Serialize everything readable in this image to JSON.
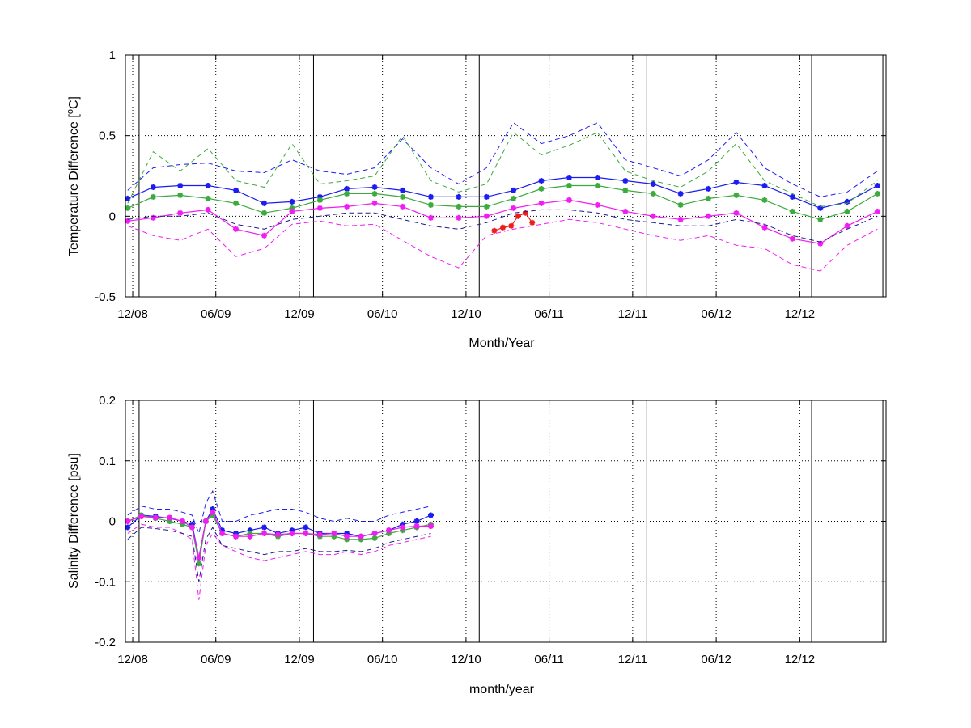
{
  "chart_data": [
    {
      "type": "line",
      "xlabel": "Month/Year",
      "ylabel": "Temperature Difference [",
      "ylabel_sup": "o",
      "ylabel_end": "C]",
      "xlim": [
        "2008-11-15",
        "2013-06-08"
      ],
      "ylim": [
        -0.5,
        1
      ],
      "yticks": [
        "1",
        "0.5",
        "0",
        "-0.5"
      ],
      "xticks": [
        "12/08",
        "06/09",
        "12/09",
        "06/10",
        "12/10",
        "06/11",
        "12/11",
        "06/12",
        "12/12"
      ],
      "xtick_dates": [
        "2008-12-01",
        "2009-06-01",
        "2009-12-01",
        "2010-06-01",
        "2010-12-01",
        "2011-06-01",
        "2011-12-01",
        "2012-06-01",
        "2012-12-01"
      ],
      "markers": [
        "2008-12-15",
        "2010-01-01",
        "2010-12-30",
        "2012-01-01",
        "2012-12-27",
        "2013-06-01"
      ],
      "grid": true,
      "colors": {
        "blue": "#1c1cf0",
        "green": "#3caa3c",
        "magenta": "#f01cf0",
        "red": "#f01c1c",
        "darkblue": "#1c1c8c"
      },
      "series": [
        {
          "color": "blue",
          "style": "marker-line",
          "x": [
            "2008-11-20",
            "2009-01-15",
            "2009-03-15",
            "2009-05-15",
            "2009-07-15",
            "2009-09-15",
            "2009-11-15",
            "2010-01-15",
            "2010-03-15",
            "2010-05-15",
            "2010-07-15",
            "2010-09-15",
            "2010-11-15",
            "2011-01-15",
            "2011-03-15",
            "2011-05-15",
            "2011-07-15",
            "2011-09-15",
            "2011-11-15",
            "2012-01-15",
            "2012-03-15",
            "2012-05-15",
            "2012-07-15",
            "2012-09-15",
            "2012-11-15",
            "2013-01-15",
            "2013-03-15",
            "2013-05-20"
          ],
          "y": [
            0.11,
            0.18,
            0.19,
            0.19,
            0.16,
            0.08,
            0.09,
            0.12,
            0.17,
            0.18,
            0.16,
            0.12,
            0.12,
            0.12,
            0.16,
            0.22,
            0.24,
            0.24,
            0.22,
            0.2,
            0.14,
            0.17,
            0.21,
            0.19,
            0.12,
            0.05,
            0.09,
            0.19
          ]
        },
        {
          "color": "green",
          "style": "marker-line",
          "x": [
            "2008-11-20",
            "2009-01-15",
            "2009-03-15",
            "2009-05-15",
            "2009-07-15",
            "2009-09-15",
            "2009-11-15",
            "2010-01-15",
            "2010-03-15",
            "2010-05-15",
            "2010-07-15",
            "2010-09-15",
            "2010-11-15",
            "2011-01-15",
            "2011-03-15",
            "2011-05-15",
            "2011-07-15",
            "2011-09-15",
            "2011-11-15",
            "2012-01-15",
            "2012-03-15",
            "2012-05-15",
            "2012-07-15",
            "2012-09-15",
            "2012-11-15",
            "2013-01-15",
            "2013-03-15",
            "2013-05-20"
          ],
          "y": [
            0.05,
            0.12,
            0.13,
            0.11,
            0.08,
            0.02,
            0.05,
            0.1,
            0.14,
            0.14,
            0.12,
            0.07,
            0.06,
            0.06,
            0.11,
            0.17,
            0.19,
            0.19,
            0.16,
            0.14,
            0.07,
            0.11,
            0.13,
            0.1,
            0.03,
            -0.02,
            0.03,
            0.14
          ]
        },
        {
          "color": "magenta",
          "style": "marker-line",
          "x": [
            "2008-11-20",
            "2009-01-15",
            "2009-03-15",
            "2009-05-15",
            "2009-07-15",
            "2009-09-15",
            "2009-11-15",
            "2010-01-15",
            "2010-03-15",
            "2010-05-15",
            "2010-07-15",
            "2010-09-15",
            "2010-11-15",
            "2011-01-15",
            "2011-03-15",
            "2011-05-15",
            "2011-07-15",
            "2011-09-15",
            "2011-11-15",
            "2012-01-15",
            "2012-03-15",
            "2012-05-15",
            "2012-07-15",
            "2012-09-15",
            "2012-11-15",
            "2013-01-15",
            "2013-03-15",
            "2013-05-20"
          ],
          "y": [
            -0.03,
            -0.01,
            0.02,
            0.04,
            -0.08,
            -0.12,
            0.03,
            0.05,
            0.06,
            0.08,
            0.06,
            -0.01,
            -0.01,
            0.0,
            0.05,
            0.08,
            0.1,
            0.07,
            0.03,
            0.0,
            -0.02,
            0.0,
            0.02,
            -0.07,
            -0.14,
            -0.17,
            -0.06,
            0.03
          ]
        },
        {
          "color": "red",
          "style": "marker-line",
          "x": [
            "2011-02-01",
            "2011-02-20",
            "2011-03-10",
            "2011-03-25",
            "2011-04-10",
            "2011-04-25"
          ],
          "y": [
            -0.09,
            -0.07,
            -0.06,
            0.0,
            0.02,
            -0.04
          ]
        },
        {
          "color": "blue",
          "style": "dashed",
          "x": [
            "2008-11-20",
            "2009-01-15",
            "2009-03-15",
            "2009-05-15",
            "2009-07-15",
            "2009-09-15",
            "2009-11-15",
            "2010-01-15",
            "2010-03-15",
            "2010-05-15",
            "2010-07-15",
            "2010-09-15",
            "2010-11-15",
            "2011-01-15",
            "2011-03-15",
            "2011-05-15",
            "2011-07-15",
            "2011-09-15",
            "2011-11-15",
            "2012-01-15",
            "2012-03-15",
            "2012-05-15",
            "2012-07-15",
            "2012-09-15",
            "2012-11-15",
            "2013-01-15",
            "2013-03-15",
            "2013-05-20"
          ],
          "y": [
            0.16,
            0.3,
            0.32,
            0.33,
            0.28,
            0.27,
            0.35,
            0.28,
            0.26,
            0.3,
            0.48,
            0.3,
            0.2,
            0.3,
            0.58,
            0.45,
            0.5,
            0.58,
            0.35,
            0.3,
            0.25,
            0.35,
            0.52,
            0.3,
            0.2,
            0.12,
            0.15,
            0.28
          ]
        },
        {
          "color": "green",
          "style": "dashed",
          "x": [
            "2008-11-20",
            "2009-01-15",
            "2009-03-15",
            "2009-05-15",
            "2009-07-15",
            "2009-09-15",
            "2009-11-15",
            "2010-01-15",
            "2010-03-15",
            "2010-05-15",
            "2010-07-15",
            "2010-09-15",
            "2010-11-15",
            "2011-01-15",
            "2011-03-15",
            "2011-05-15",
            "2011-07-15",
            "2011-09-15",
            "2011-11-15",
            "2012-01-15",
            "2012-03-15",
            "2012-05-15",
            "2012-07-15",
            "2012-09-15",
            "2012-11-15",
            "2013-01-15",
            "2013-03-15",
            "2013-05-20"
          ],
          "y": [
            0.08,
            0.4,
            0.28,
            0.42,
            0.22,
            0.18,
            0.45,
            0.2,
            0.22,
            0.25,
            0.5,
            0.22,
            0.15,
            0.2,
            0.52,
            0.38,
            0.44,
            0.52,
            0.28,
            0.22,
            0.18,
            0.28,
            0.45,
            0.22,
            0.14,
            0.06,
            0.08,
            0.22
          ]
        },
        {
          "color": "magenta",
          "style": "dashed",
          "x": [
            "2008-11-20",
            "2009-01-15",
            "2009-03-15",
            "2009-05-15",
            "2009-07-15",
            "2009-09-15",
            "2009-11-15",
            "2010-01-15",
            "2010-03-15",
            "2010-05-15",
            "2010-07-15",
            "2010-09-15",
            "2010-11-15",
            "2011-01-15",
            "2011-03-15",
            "2011-05-15",
            "2011-07-15",
            "2011-09-15",
            "2011-11-15",
            "2012-01-15",
            "2012-03-15",
            "2012-05-15",
            "2012-07-15",
            "2012-09-15",
            "2012-11-15",
            "2013-01-15",
            "2013-03-15",
            "2013-05-20"
          ],
          "y": [
            -0.06,
            -0.12,
            -0.15,
            -0.08,
            -0.25,
            -0.2,
            -0.05,
            -0.03,
            -0.06,
            -0.05,
            -0.15,
            -0.25,
            -0.32,
            -0.12,
            -0.08,
            -0.05,
            -0.02,
            -0.04,
            -0.08,
            -0.12,
            -0.15,
            -0.12,
            -0.18,
            -0.2,
            -0.3,
            -0.34,
            -0.18,
            -0.08
          ]
        },
        {
          "color": "darkblue",
          "style": "dashed",
          "x": [
            "2008-11-20",
            "2009-01-15",
            "2009-03-15",
            "2009-05-15",
            "2009-07-15",
            "2009-09-15",
            "2009-11-15",
            "2010-01-15",
            "2010-03-15",
            "2010-05-15",
            "2010-07-15",
            "2010-09-15",
            "2010-11-15",
            "2011-01-15",
            "2011-03-15",
            "2011-05-15",
            "2011-07-15",
            "2011-09-15",
            "2011-11-15",
            "2012-01-15",
            "2012-03-15",
            "2012-05-15",
            "2012-07-15",
            "2012-09-15",
            "2012-11-15",
            "2013-01-15",
            "2013-03-15",
            "2013-05-20"
          ],
          "y": [
            -0.02,
            0.0,
            0.0,
            0.02,
            -0.05,
            -0.08,
            -0.02,
            0.0,
            0.02,
            0.02,
            -0.02,
            -0.06,
            -0.08,
            -0.04,
            0.02,
            0.04,
            0.04,
            0.02,
            -0.02,
            -0.04,
            -0.06,
            -0.06,
            -0.02,
            -0.05,
            -0.12,
            -0.16,
            -0.08,
            0.0
          ]
        }
      ]
    },
    {
      "type": "line",
      "xlabel": "month/year",
      "ylabel": "Salinity Difference [psu]",
      "xlim": [
        "2008-11-15",
        "2013-06-08"
      ],
      "ylim": [
        -0.2,
        0.2
      ],
      "yticks": [
        "0.2",
        "0.1",
        "0",
        "-0.1",
        "-0.2"
      ],
      "xticks": [
        "12/08",
        "06/09",
        "12/09",
        "06/10",
        "12/10",
        "06/11",
        "12/11",
        "06/12",
        "12/12"
      ],
      "xtick_dates": [
        "2008-12-01",
        "2009-06-01",
        "2009-12-01",
        "2010-06-01",
        "2010-12-01",
        "2011-06-01",
        "2011-12-01",
        "2012-06-01",
        "2012-12-01"
      ],
      "markers": [
        "2008-12-15",
        "2010-01-01",
        "2010-12-30",
        "2012-01-01",
        "2012-12-27",
        "2013-06-01"
      ],
      "grid": true,
      "colors": {
        "blue": "#1c1cf0",
        "green": "#3caa3c",
        "magenta": "#f01cf0",
        "darkblue": "#1c1c8c"
      },
      "series": [
        {
          "color": "blue",
          "style": "marker-line",
          "x": [
            "2008-11-20",
            "2008-12-20",
            "2009-01-20",
            "2009-02-20",
            "2009-03-20",
            "2009-04-10",
            "2009-04-25",
            "2009-05-10",
            "2009-05-25",
            "2009-06-15",
            "2009-07-15",
            "2009-08-15",
            "2009-09-15",
            "2009-10-15",
            "2009-11-15",
            "2009-12-15",
            "2010-01-15",
            "2010-02-15",
            "2010-03-15",
            "2010-04-15",
            "2010-05-15",
            "2010-06-15",
            "2010-07-15",
            "2010-08-15",
            "2010-09-15"
          ],
          "y": [
            -0.01,
            0.01,
            0.008,
            0.005,
            0.0,
            -0.005,
            -0.06,
            0.0,
            0.02,
            -0.015,
            -0.02,
            -0.015,
            -0.01,
            -0.02,
            -0.015,
            -0.01,
            -0.02,
            -0.02,
            -0.02,
            -0.025,
            -0.02,
            -0.015,
            -0.005,
            0.0,
            0.01
          ]
        },
        {
          "color": "green",
          "style": "marker-line",
          "x": [
            "2008-11-20",
            "2008-12-20",
            "2009-01-20",
            "2009-02-20",
            "2009-03-20",
            "2009-04-10",
            "2009-04-25",
            "2009-05-10",
            "2009-05-25",
            "2009-06-15",
            "2009-07-15",
            "2009-08-15",
            "2009-09-15",
            "2009-10-15",
            "2009-11-15",
            "2009-12-15",
            "2010-01-15",
            "2010-02-15",
            "2010-03-15",
            "2010-04-15",
            "2010-05-15",
            "2010-06-15",
            "2010-07-15",
            "2010-08-15",
            "2010-09-15"
          ],
          "y": [
            0.0,
            0.01,
            0.005,
            0.0,
            -0.005,
            -0.01,
            -0.07,
            0.0,
            0.01,
            -0.02,
            -0.025,
            -0.02,
            -0.02,
            -0.025,
            -0.02,
            -0.02,
            -0.025,
            -0.025,
            -0.03,
            -0.03,
            -0.028,
            -0.02,
            -0.015,
            -0.01,
            -0.005
          ]
        },
        {
          "color": "magenta",
          "style": "marker-line",
          "x": [
            "2008-11-20",
            "2008-12-20",
            "2009-01-20",
            "2009-02-20",
            "2009-03-20",
            "2009-04-10",
            "2009-04-25",
            "2009-05-10",
            "2009-05-25",
            "2009-06-15",
            "2009-07-15",
            "2009-08-15",
            "2009-09-15",
            "2009-10-15",
            "2009-11-15",
            "2009-12-15",
            "2010-01-15",
            "2010-02-15",
            "2010-03-15",
            "2010-04-15",
            "2010-05-15",
            "2010-06-15",
            "2010-07-15",
            "2010-08-15",
            "2010-09-15"
          ],
          "y": [
            0.0,
            0.008,
            0.006,
            0.006,
            0.0,
            -0.01,
            -0.06,
            0.0,
            0.015,
            -0.02,
            -0.025,
            -0.025,
            -0.02,
            -0.022,
            -0.02,
            -0.02,
            -0.022,
            -0.02,
            -0.025,
            -0.025,
            -0.02,
            -0.015,
            -0.01,
            -0.008,
            -0.008
          ]
        },
        {
          "color": "blue",
          "style": "dashed",
          "x": [
            "2008-11-20",
            "2008-12-20",
            "2009-01-20",
            "2009-02-20",
            "2009-03-20",
            "2009-04-10",
            "2009-04-25",
            "2009-05-10",
            "2009-05-25",
            "2009-06-15",
            "2009-07-15",
            "2009-08-15",
            "2009-09-15",
            "2009-10-15",
            "2009-11-15",
            "2009-12-15",
            "2010-01-15",
            "2010-02-15",
            "2010-03-15",
            "2010-04-15",
            "2010-05-15",
            "2010-06-15",
            "2010-07-15",
            "2010-08-15",
            "2010-09-15"
          ],
          "y": [
            0.01,
            0.025,
            0.02,
            0.02,
            0.015,
            0.01,
            -0.02,
            0.03,
            0.05,
            0.0,
            0.0,
            0.01,
            0.015,
            0.02,
            0.02,
            0.015,
            0.005,
            0.0,
            0.005,
            0.0,
            0.0,
            0.01,
            0.015,
            0.02,
            0.025
          ]
        },
        {
          "color": "magenta",
          "style": "dashed",
          "x": [
            "2008-11-20",
            "2008-12-20",
            "2009-01-20",
            "2009-02-20",
            "2009-03-20",
            "2009-04-10",
            "2009-04-25",
            "2009-05-10",
            "2009-05-25",
            "2009-06-15",
            "2009-07-15",
            "2009-08-15",
            "2009-09-15",
            "2009-10-15",
            "2009-11-15",
            "2009-12-15",
            "2010-01-15",
            "2010-02-15",
            "2010-03-15",
            "2010-04-15",
            "2010-05-15",
            "2010-06-15",
            "2010-07-15",
            "2010-08-15",
            "2010-09-15"
          ],
          "y": [
            -0.02,
            -0.005,
            -0.01,
            -0.01,
            -0.02,
            -0.03,
            -0.13,
            -0.04,
            -0.02,
            -0.04,
            -0.05,
            -0.06,
            -0.065,
            -0.06,
            -0.055,
            -0.05,
            -0.055,
            -0.055,
            -0.05,
            -0.055,
            -0.05,
            -0.04,
            -0.035,
            -0.03,
            -0.025
          ]
        },
        {
          "color": "darkblue",
          "style": "dashed",
          "x": [
            "2008-11-20",
            "2008-12-20",
            "2009-01-20",
            "2009-02-20",
            "2009-03-20",
            "2009-04-10",
            "2009-04-25",
            "2009-05-10",
            "2009-05-25",
            "2009-06-15",
            "2009-07-15",
            "2009-08-15",
            "2009-09-15",
            "2009-10-15",
            "2009-11-15",
            "2009-12-15",
            "2010-01-15",
            "2010-02-15",
            "2010-03-15",
            "2010-04-15",
            "2010-05-15",
            "2010-06-15",
            "2010-07-15",
            "2010-08-15",
            "2010-09-15"
          ],
          "y": [
            -0.03,
            -0.01,
            -0.012,
            -0.015,
            -0.02,
            -0.025,
            -0.1,
            -0.03,
            -0.01,
            -0.04,
            -0.045,
            -0.05,
            -0.055,
            -0.05,
            -0.05,
            -0.045,
            -0.05,
            -0.05,
            -0.048,
            -0.05,
            -0.045,
            -0.035,
            -0.03,
            -0.025,
            -0.02
          ]
        }
      ]
    }
  ]
}
